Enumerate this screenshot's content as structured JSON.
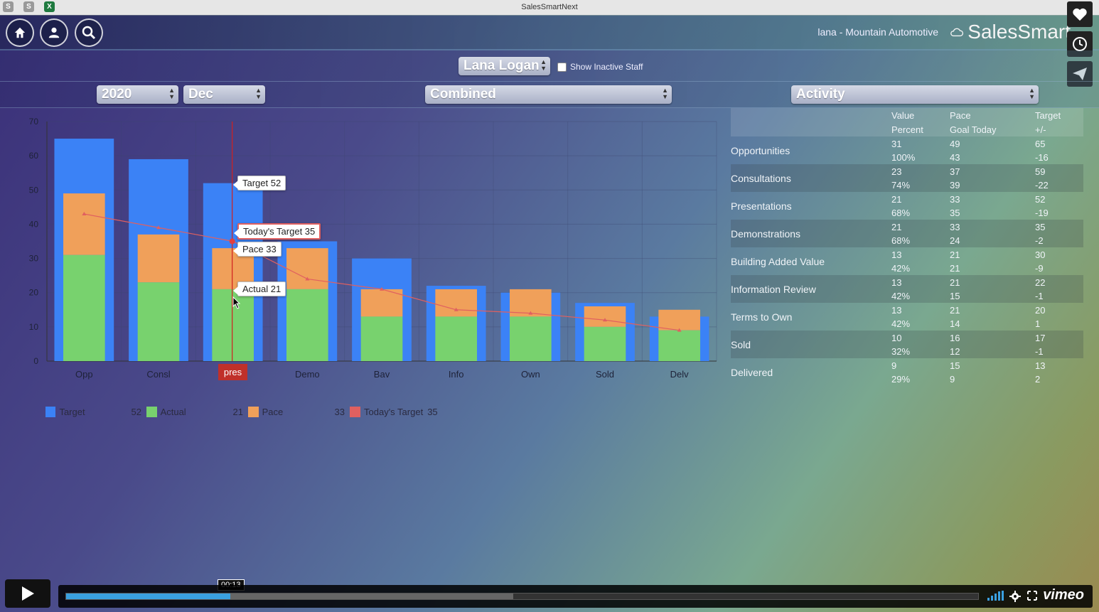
{
  "window": {
    "title": "SalesSmartNext",
    "app_icons": [
      "S",
      "S",
      "X"
    ]
  },
  "header": {
    "org": "lana - Mountain Automotive",
    "brand": "SalesSmart"
  },
  "staff": {
    "selected": "Lana Logan",
    "show_inactive_label": "Show Inactive Staff",
    "show_inactive_checked": false
  },
  "filters": {
    "year": "2020",
    "month": "Dec",
    "mode": "Combined",
    "metric": "Activity"
  },
  "tooltips": {
    "target": "Target 52",
    "todays_target": "Today's Target 35",
    "pace": "Pace 33",
    "actual": "Actual 21"
  },
  "chart_data": {
    "type": "bar",
    "categories": [
      "Opp",
      "Consl",
      "pres",
      "Demo",
      "Bav",
      "Info",
      "Own",
      "Sold",
      "Delv"
    ],
    "selected_category": "pres",
    "ylim": [
      0,
      70
    ],
    "yticks": [
      0,
      10,
      20,
      30,
      40,
      50,
      60,
      70
    ],
    "series": [
      {
        "name": "Target",
        "color": "#3b82f6",
        "values": [
          65,
          59,
          52,
          35,
          30,
          22,
          20,
          17,
          13
        ]
      },
      {
        "name": "Pace",
        "color": "#f0a05a",
        "values": [
          49,
          37,
          33,
          33,
          21,
          21,
          21,
          16,
          15
        ]
      },
      {
        "name": "Actual",
        "color": "#78d26e",
        "values": [
          31,
          23,
          21,
          21,
          13,
          13,
          13,
          10,
          9
        ]
      },
      {
        "name": "Today's Target",
        "color": "#e06060",
        "values": [
          43,
          39,
          35,
          24,
          21,
          15,
          14,
          12,
          9
        ]
      }
    ],
    "legend": [
      {
        "name": "Target",
        "value": "52",
        "color": "#3b82f6"
      },
      {
        "name": "Actual",
        "value": "21",
        "color": "#78d26e"
      },
      {
        "name": "Pace",
        "value": "33",
        "color": "#f0a05a"
      },
      {
        "name": "Today's Target",
        "value": "35",
        "color": "#e06060"
      }
    ]
  },
  "stats": {
    "headers": {
      "col1": [
        "Value",
        "Percent"
      ],
      "col2": [
        "Pace",
        "Goal Today"
      ],
      "col3": [
        "Target",
        "+/-"
      ]
    },
    "rows": [
      {
        "label": "Opportunities",
        "value": "31",
        "percent": "100%",
        "pace": "49",
        "goal_today": "43",
        "target": "65",
        "diff": "-16"
      },
      {
        "label": "Consultations",
        "value": "23",
        "percent": "74%",
        "pace": "37",
        "goal_today": "39",
        "target": "59",
        "diff": "-22"
      },
      {
        "label": "Presentations",
        "value": "21",
        "percent": "68%",
        "pace": "33",
        "goal_today": "35",
        "target": "52",
        "diff": "-19"
      },
      {
        "label": "Demonstrations",
        "value": "21",
        "percent": "68%",
        "pace": "33",
        "goal_today": "24",
        "target": "35",
        "diff": "-2"
      },
      {
        "label": "Building Added Value",
        "value": "13",
        "percent": "42%",
        "pace": "21",
        "goal_today": "21",
        "target": "30",
        "diff": "-9"
      },
      {
        "label": "Information Review",
        "value": "13",
        "percent": "42%",
        "pace": "21",
        "goal_today": "15",
        "target": "22",
        "diff": "-1"
      },
      {
        "label": "Terms to Own",
        "value": "13",
        "percent": "42%",
        "pace": "21",
        "goal_today": "14",
        "target": "20",
        "diff": "1"
      },
      {
        "label": "Sold",
        "value": "10",
        "percent": "32%",
        "pace": "16",
        "goal_today": "12",
        "target": "17",
        "diff": "-1"
      },
      {
        "label": "Delivered",
        "value": "9",
        "percent": "29%",
        "pace": "15",
        "goal_today": "9",
        "target": "13",
        "diff": "2"
      }
    ]
  },
  "video": {
    "time": "00:13",
    "progress": 0.18,
    "buffered": 0.49,
    "brand": "vimeo"
  }
}
